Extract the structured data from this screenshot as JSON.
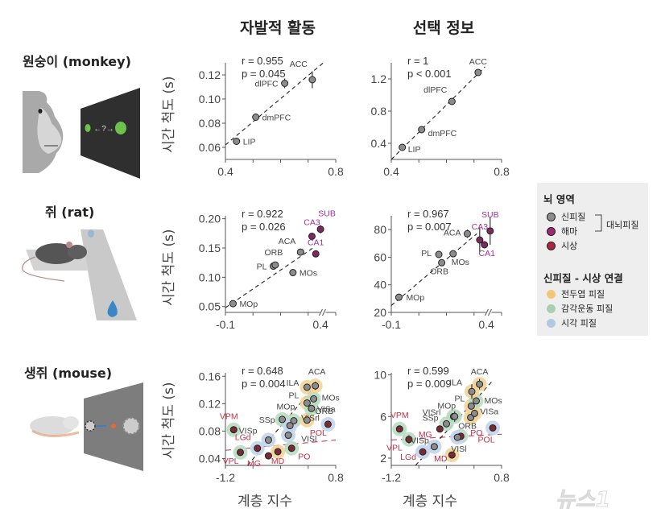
{
  "columns": {
    "spontaneous": "자발적 활동",
    "choice": "선택 정보"
  },
  "species": {
    "monkey": "원숭이 (monkey)",
    "rat": "쥐 (rat)",
    "mouse": "생쥐 (mouse)"
  },
  "monkey_task": {
    "arrow_label": "←?→"
  },
  "axis_labels": {
    "ylabel": "시간 척도 (s)",
    "xlabel": "계층 지수"
  },
  "legend": {
    "region_title": "뇌 영역",
    "regions": [
      {
        "label": "신피질",
        "color": "#8c8c8c"
      },
      {
        "label": "해마",
        "color": "#a0287a"
      },
      {
        "label": "시상",
        "color": "#b0233f"
      }
    ],
    "bracket_label": "대뇌피질",
    "link_title": "신피질 - 시상 연결",
    "links": [
      {
        "label": "전두엽 피질",
        "color": "#f0c878"
      },
      {
        "label": "감각운동 피질",
        "color": "#a8d0b0"
      },
      {
        "label": "시각 피질",
        "color": "#b4c8e4"
      }
    ]
  },
  "watermark": "뉴스1",
  "colors": {
    "cortex": "#8c8c8c",
    "hippo": "#7a2a5c",
    "hippo_label": "#a0309a",
    "thal": "#7a2a34",
    "thal_label": "#c0304a",
    "frontal": "#f2d49a",
    "sensorimotor": "#b8dcc0",
    "visual": "#c4d4ec"
  },
  "chart_data": [
    {
      "id": "monkey-spontaneous",
      "type": "scatter",
      "title": "자발적 활동",
      "xlabel": "",
      "ylabel": "시간 척도 (s)",
      "xlim": [
        0.4,
        0.8
      ],
      "ylim": [
        0.05,
        0.13
      ],
      "xticks": [
        0.4,
        0.8
      ],
      "yticks": [
        0.06,
        0.08,
        0.1,
        0.12
      ],
      "ytick_labels": [
        "0.06",
        "0.08",
        "0.10",
        "0.12"
      ],
      "stats": {
        "r": "r = 0.955",
        "p": "p = 0.045"
      },
      "fit": [
        [
          0.4,
          0.062
        ],
        [
          0.755,
          0.13
        ]
      ],
      "points": [
        {
          "label": "LIP",
          "x": 0.44,
          "y": 0.065,
          "err": 0.0,
          "group": "cortex",
          "lx": 8,
          "ly": 4,
          "anchor": "start"
        },
        {
          "label": "dmPFC",
          "x": 0.51,
          "y": 0.085,
          "err": 0.003,
          "group": "cortex",
          "lx": 8,
          "ly": 4,
          "anchor": "start"
        },
        {
          "label": "dlPFC",
          "x": 0.615,
          "y": 0.113,
          "err": 0.004,
          "group": "cortex",
          "lx": -8,
          "ly": 4,
          "anchor": "end"
        },
        {
          "label": "ACC",
          "x": 0.715,
          "y": 0.116,
          "err": 0.007,
          "group": "cortex",
          "lx": -6,
          "ly": -16,
          "anchor": "end"
        }
      ]
    },
    {
      "id": "monkey-choice",
      "type": "scatter",
      "title": "선택 정보",
      "xlim": [
        0.4,
        0.8
      ],
      "ylim": [
        0.2,
        1.4
      ],
      "xticks": [
        0.4,
        0.8
      ],
      "yticks": [
        0.4,
        0.8,
        1.2
      ],
      "ytick_labels": [
        "0.4",
        "0.8",
        "1.2"
      ],
      "stats": {
        "r": "r = 1",
        "p": "p < 0.001"
      },
      "fit": [
        [
          0.4,
          0.2
        ],
        [
          0.74,
          1.35
        ]
      ],
      "points": [
        {
          "label": "LIP",
          "x": 0.44,
          "y": 0.35,
          "err": 0.0,
          "group": "cortex",
          "lx": 7,
          "ly": 6,
          "anchor": "start"
        },
        {
          "label": "dmPFC",
          "x": 0.51,
          "y": 0.57,
          "err": 0.0,
          "group": "cortex",
          "lx": 8,
          "ly": 8,
          "anchor": "start"
        },
        {
          "label": "dlPFC",
          "x": 0.62,
          "y": 0.92,
          "err": 0.0,
          "group": "cortex",
          "lx": -6,
          "ly": -11,
          "anchor": "end"
        },
        {
          "label": "ACC",
          "x": 0.715,
          "y": 1.28,
          "err": 0.04,
          "group": "cortex",
          "lx": 0,
          "ly": -10,
          "anchor": "middle"
        }
      ]
    },
    {
      "id": "rat-spontaneous",
      "type": "scatter",
      "xlim": [
        -0.1,
        0.48
      ],
      "ylim": [
        0.04,
        0.205
      ],
      "xticks": [
        -0.1,
        0.4
      ],
      "xtick_labels": [
        "-0.1",
        "0.4"
      ],
      "axis_break": 0.41,
      "yticks": [
        0.05,
        0.1,
        0.15,
        0.2
      ],
      "ytick_labels": [
        "0.05",
        "0.10",
        "0.15",
        "0.20"
      ],
      "stats": {
        "r": "r = 0.922",
        "p": "p = 0.026"
      },
      "fit": [
        [
          -0.1,
          0.048
        ],
        [
          0.36,
          0.15
        ]
      ],
      "points": [
        {
          "label": "MOp",
          "x": -0.06,
          "y": 0.055,
          "err": 0.002,
          "group": "cortex",
          "lx": 8,
          "ly": 4,
          "anchor": "start"
        },
        {
          "label": "PL",
          "x": 0.152,
          "y": 0.119,
          "err": 0.0,
          "group": "cortex",
          "lx": -8,
          "ly": 4,
          "anchor": "end"
        },
        {
          "label": "ORB",
          "x": 0.162,
          "y": 0.121,
          "err": 0.0,
          "group": "cortex",
          "lx": -2,
          "ly": -12,
          "anchor": "middle"
        },
        {
          "label": "MOs",
          "x": 0.255,
          "y": 0.108,
          "err": 0.0,
          "group": "cortex",
          "lx": 8,
          "ly": 4,
          "anchor": "start"
        },
        {
          "label": "ACA",
          "x": 0.295,
          "y": 0.143,
          "err": 0.004,
          "group": "cortex",
          "lx": -6,
          "ly": -10,
          "anchor": "end"
        },
        {
          "label": "CA3",
          "x": 0.355,
          "y": 0.17,
          "err": 0.005,
          "group": "hippo",
          "lx": 0,
          "ly": -14,
          "anchor": "middle"
        },
        {
          "label": "CA1",
          "x": 0.375,
          "y": 0.14,
          "err": 0.0,
          "group": "hippo",
          "lx": 0,
          "ly": -11,
          "anchor": "middle"
        },
        {
          "label": "SUB",
          "x": 0.4,
          "y": 0.182,
          "err": 0.007,
          "group": "hippo",
          "lx": 8,
          "ly": -16,
          "anchor": "middle"
        }
      ]
    },
    {
      "id": "rat-choice",
      "type": "scatter",
      "xlim": [
        -0.1,
        0.48
      ],
      "ylim": [
        20,
        90
      ],
      "xticks": [
        -0.1,
        0.4
      ],
      "xtick_labels": [
        "-0.1",
        "0.4"
      ],
      "axis_break": 0.41,
      "yticks": [
        20,
        40,
        60,
        80
      ],
      "ytick_labels": [
        "20",
        "40",
        "60",
        "80"
      ],
      "stats": {
        "r": "r = 0.967",
        "p": "p = 0.007"
      },
      "fit": [
        [
          -0.1,
          25
        ],
        [
          0.35,
          77
        ]
      ],
      "points": [
        {
          "label": "MOp",
          "x": -0.06,
          "y": 31,
          "err": 2.5,
          "group": "cortex",
          "lx": 9,
          "ly": 4,
          "anchor": "start"
        },
        {
          "label": "PL",
          "x": 0.15,
          "y": 62,
          "err": 0.0,
          "group": "cortex",
          "lx": -9,
          "ly": 2,
          "anchor": "end"
        },
        {
          "label": "ORB",
          "x": 0.165,
          "y": 56,
          "err": 2.5,
          "group": "cortex",
          "lx": -3,
          "ly": 14,
          "anchor": "middle"
        },
        {
          "label": "MOs",
          "x": 0.225,
          "y": 62.5,
          "err": 2.5,
          "group": "cortex",
          "lx": -2,
          "ly": 14,
          "anchor": "start"
        },
        {
          "label": "ACA",
          "x": 0.3,
          "y": 77,
          "err": 3.0,
          "group": "cortex",
          "lx": -8,
          "ly": 2,
          "anchor": "end"
        },
        {
          "label": "CA3",
          "x": 0.365,
          "y": 72.5,
          "err": 9.0,
          "group": "hippo",
          "lx": 0,
          "ly": -13,
          "anchor": "middle"
        },
        {
          "label": "CA1",
          "x": 0.39,
          "y": 69,
          "err": 2.0,
          "group": "hippo",
          "lx": 3,
          "ly": 14,
          "anchor": "middle"
        },
        {
          "label": "SUB",
          "x": 0.42,
          "y": 79,
          "err": 10.0,
          "group": "hippo",
          "lx": 0,
          "ly": -17,
          "anchor": "middle"
        }
      ]
    },
    {
      "id": "mouse-spontaneous",
      "type": "scatter",
      "xlabel": "계층 지수",
      "xlim": [
        -1.2,
        0.8
      ],
      "ylim": [
        0.03,
        0.165
      ],
      "xticks": [
        -1.2,
        0.8
      ],
      "xtick_labels": [
        "-1.2",
        "0.8"
      ],
      "yticks": [
        0.04,
        0.08,
        0.12,
        0.16
      ],
      "ytick_labels": [
        "0.04",
        "0.08",
        "0.12",
        "0.16"
      ],
      "stats": {
        "r": "r = 0.648",
        "p": "p = 0.004"
      },
      "fit": [
        [
          -0.8,
          0.03
        ],
        [
          0.5,
          0.153
        ]
      ],
      "thal_fit": [
        [
          -1.2,
          0.052
        ],
        [
          0.8,
          0.067
        ]
      ],
      "points": [
        {
          "label": "VPM",
          "x": -1.05,
          "y": 0.082,
          "err": 0.0,
          "group": "thal",
          "halo": "sensorimotor",
          "lx": -6,
          "ly": -13,
          "anchor": "middle"
        },
        {
          "label": "VPL",
          "x": -0.93,
          "y": 0.049,
          "err": 0.0,
          "group": "thal",
          "halo": "sensorimotor",
          "lx": -12,
          "ly": 14,
          "anchor": "middle"
        },
        {
          "label": "LGd",
          "x": -0.62,
          "y": 0.055,
          "err": 0.0,
          "group": "thal",
          "halo": "visual",
          "lx": -18,
          "ly": -10,
          "anchor": "middle"
        },
        {
          "label": "MG",
          "x": -0.42,
          "y": 0.044,
          "err": 0.0,
          "group": "thal",
          "halo": "none",
          "lx": -18,
          "ly": 13,
          "anchor": "middle"
        },
        {
          "label": "MD",
          "x": -0.25,
          "y": 0.05,
          "err": 0.0,
          "group": "thal",
          "halo": "frontal",
          "lx": 0,
          "ly": 15,
          "anchor": "middle"
        },
        {
          "label": "PO",
          "x": 0.0,
          "y": 0.055,
          "err": 0.0,
          "group": "thal",
          "halo": "sensorimotor",
          "lx": 8,
          "ly": 14,
          "anchor": "start"
        },
        {
          "label": "POL",
          "x": 0.66,
          "y": 0.09,
          "err": 0.004,
          "group": "thal",
          "halo": "visual",
          "lx": -12,
          "ly": 14,
          "anchor": "middle"
        },
        {
          "label": "VISp",
          "x": -0.42,
          "y": 0.067,
          "err": 0.0,
          "group": "cortex",
          "halo": "visual",
          "lx": -14,
          "ly": -8,
          "anchor": "end"
        },
        {
          "label": "SSp",
          "x": -0.17,
          "y": 0.097,
          "err": 0.0,
          "group": "cortex",
          "halo": "sensorimotor",
          "lx": -9,
          "ly": 4,
          "anchor": "end"
        },
        {
          "label": "MOp",
          "x": 0.04,
          "y": 0.095,
          "err": 0.003,
          "group": "cortex",
          "halo": "sensorimotor",
          "lx": -10,
          "ly": -14,
          "anchor": "middle"
        },
        {
          "label": "VISrl",
          "x": -0.03,
          "y": 0.088,
          "err": 0.0,
          "group": "cortex",
          "halo": "visual",
          "lx": 14,
          "ly": -6,
          "anchor": "start"
        },
        {
          "label": "VISl",
          "x": -0.06,
          "y": 0.074,
          "err": 0.004,
          "group": "cortex",
          "halo": "visual",
          "lx": 16,
          "ly": 8,
          "anchor": "start"
        },
        {
          "label": "ORB",
          "x": 0.28,
          "y": 0.096,
          "err": 0.003,
          "group": "cortex",
          "halo": "frontal",
          "lx": 10,
          "ly": -8,
          "anchor": "start"
        },
        {
          "label": "PL",
          "x": 0.28,
          "y": 0.121,
          "err": 0.004,
          "group": "cortex",
          "halo": "frontal",
          "lx": -10,
          "ly": -6,
          "anchor": "end"
        },
        {
          "label": "VISa",
          "x": 0.36,
          "y": 0.113,
          "err": 0.004,
          "group": "cortex",
          "halo": "sensorimotor",
          "lx": 7,
          "ly": 4,
          "anchor": "start"
        },
        {
          "label": "MOs",
          "x": 0.4,
          "y": 0.127,
          "err": 0.004,
          "group": "cortex",
          "halo": "sensorimotor",
          "lx": 10,
          "ly": 2,
          "anchor": "start"
        },
        {
          "label": "ILA",
          "x": 0.28,
          "y": 0.144,
          "err": 0.003,
          "group": "cortex",
          "halo": "frontal",
          "lx": -10,
          "ly": -2,
          "anchor": "end"
        },
        {
          "label": "ACA",
          "x": 0.43,
          "y": 0.146,
          "err": 0.006,
          "group": "cortex",
          "halo": "frontal",
          "lx": 2,
          "ly": -14,
          "anchor": "middle"
        }
      ]
    },
    {
      "id": "mouse-choice",
      "type": "scatter",
      "xlabel": "계층 지수",
      "xlim": [
        -1.2,
        0.8
      ],
      "ylim": [
        1.3,
        10.2
      ],
      "xticks": [
        -1.2,
        0.8
      ],
      "xtick_labels": [
        "-1.2",
        "0.8"
      ],
      "yticks": [
        2,
        6,
        10
      ],
      "ytick_labels": [
        "2",
        "6",
        "10"
      ],
      "stats": {
        "r": "r = 0.599",
        "p": "p = 0.009"
      },
      "fit": [
        [
          -0.76,
          1.3
        ],
        [
          0.65,
          9.5
        ]
      ],
      "thal_fit": [
        [
          -1.2,
          3.75
        ],
        [
          0.8,
          4.3
        ]
      ],
      "points": [
        {
          "label": "VPM",
          "x": -1.05,
          "y": 4.8,
          "err": 0.0,
          "group": "thal",
          "halo": "sensorimotor",
          "lx": 0,
          "ly": -14,
          "anchor": "middle"
        },
        {
          "label": "VPL",
          "x": -0.88,
          "y": 3.8,
          "err": 0.4,
          "group": "thal",
          "halo": "sensorimotor",
          "lx": -18,
          "ly": 14,
          "anchor": "middle"
        },
        {
          "label": "LGd",
          "x": -0.63,
          "y": 2.6,
          "err": 0.0,
          "group": "thal",
          "halo": "visual",
          "lx": -18,
          "ly": 10,
          "anchor": "middle"
        },
        {
          "label": "MG",
          "x": -0.32,
          "y": 4.8,
          "err": 0.0,
          "group": "thal",
          "halo": "none",
          "lx": -18,
          "ly": 10,
          "anchor": "middle"
        },
        {
          "label": "MD",
          "x": -0.1,
          "y": 2.3,
          "err": 0.0,
          "group": "thal",
          "halo": "frontal",
          "lx": -14,
          "ly": 8,
          "anchor": "middle"
        },
        {
          "label": "PO",
          "x": 0.06,
          "y": 4.1,
          "err": 0.0,
          "group": "thal",
          "halo": "sensorimotor",
          "lx": 12,
          "ly": -1,
          "anchor": "start"
        },
        {
          "label": "POL",
          "x": 0.64,
          "y": 4.9,
          "err": 0.0,
          "group": "thal",
          "halo": "visual",
          "lx": -8,
          "ly": 18,
          "anchor": "middle"
        },
        {
          "label": "VISp",
          "x": -0.42,
          "y": 3.1,
          "err": 0.0,
          "group": "cortex",
          "halo": "visual",
          "lx": -18,
          "ly": -4,
          "anchor": "middle"
        },
        {
          "label": "VISl",
          "x": 0.0,
          "y": 4.0,
          "err": 0.0,
          "group": "cortex",
          "halo": "visual",
          "lx": -8,
          "ly": 18,
          "anchor": "start"
        },
        {
          "label": "SSp",
          "x": -0.2,
          "y": 5.3,
          "err": 0.0,
          "group": "cortex",
          "halo": "sensorimotor",
          "lx": -10,
          "ly": -4,
          "anchor": "end"
        },
        {
          "label": "VISrl",
          "x": -0.07,
          "y": 6.0,
          "err": 0.0,
          "group": "cortex",
          "halo": "sensorimotor",
          "lx": -16,
          "ly": -2,
          "anchor": "end"
        },
        {
          "label": "MOp",
          "x": -0.05,
          "y": 6.0,
          "err": 0.5,
          "group": "cortex",
          "halo": "sensorimotor",
          "lx": -10,
          "ly": -10,
          "anchor": "middle"
        },
        {
          "label": "ORB",
          "x": 0.24,
          "y": 5.9,
          "err": 0.0,
          "group": "cortex",
          "halo": "frontal",
          "lx": -4,
          "ly": 14,
          "anchor": "middle"
        },
        {
          "label": "VISa",
          "x": 0.31,
          "y": 6.3,
          "err": 0.0,
          "group": "cortex",
          "halo": "frontal",
          "lx": 7,
          "ly": 1,
          "anchor": "start"
        },
        {
          "label": "PL",
          "x": 0.25,
          "y": 7.0,
          "err": 0.0,
          "group": "cortex",
          "halo": "frontal",
          "lx": -8,
          "ly": -6,
          "anchor": "end"
        },
        {
          "label": "MOs",
          "x": 0.34,
          "y": 7.5,
          "err": 0.0,
          "group": "cortex",
          "halo": "sensorimotor",
          "lx": 10,
          "ly": 3,
          "anchor": "start"
        },
        {
          "label": "ILA",
          "x": 0.26,
          "y": 8.4,
          "err": 0.7,
          "group": "cortex",
          "halo": "frontal",
          "lx": -12,
          "ly": -8,
          "anchor": "end"
        },
        {
          "label": "ACA",
          "x": 0.4,
          "y": 9.1,
          "err": 0.5,
          "group": "cortex",
          "halo": "frontal",
          "lx": 0,
          "ly": -12,
          "anchor": "middle"
        }
      ]
    }
  ]
}
